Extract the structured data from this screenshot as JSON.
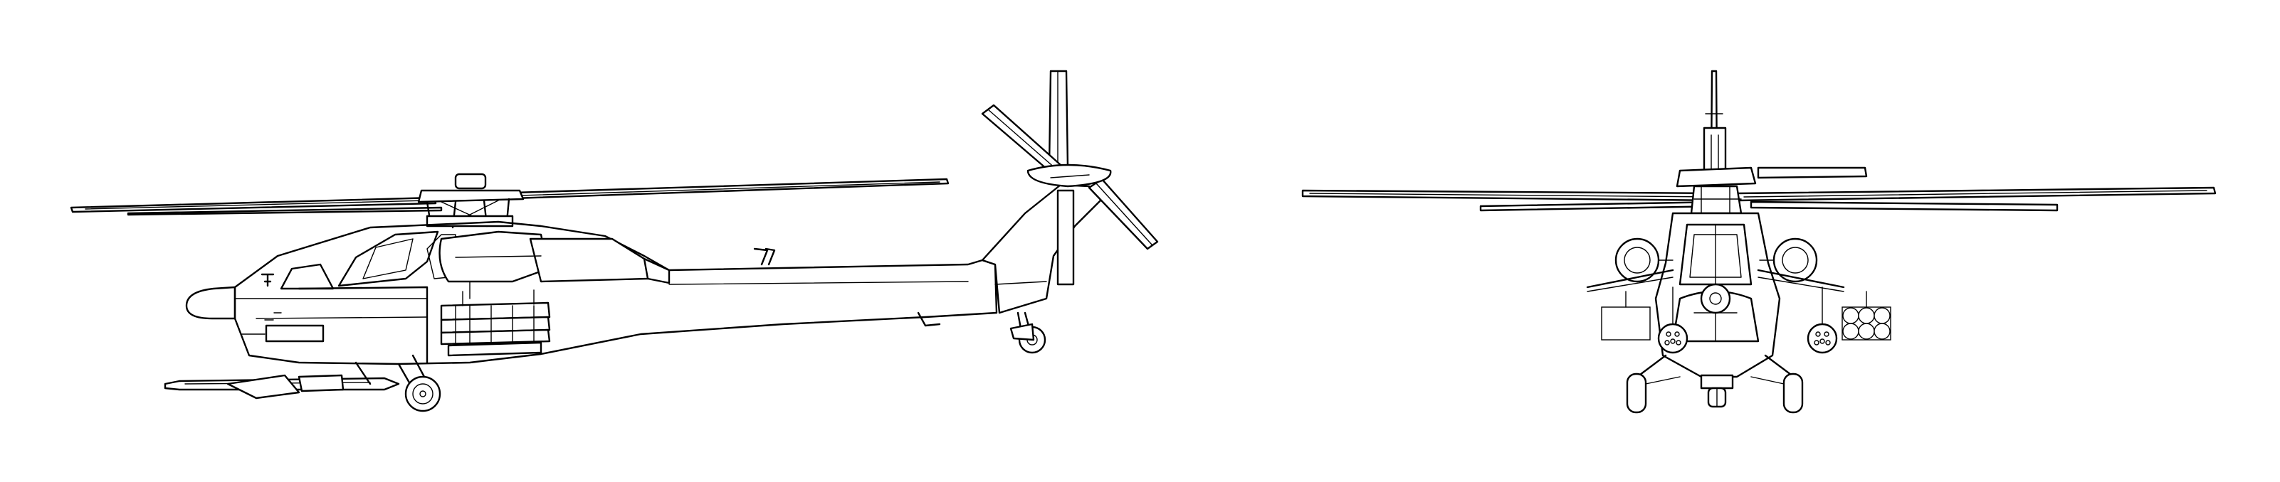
{
  "drawing": {
    "views": [
      {
        "id": "side",
        "view": "side"
      },
      {
        "id": "front",
        "view": "front"
      }
    ],
    "style": {
      "line_color": "#000000",
      "background": "#ffffff"
    }
  }
}
